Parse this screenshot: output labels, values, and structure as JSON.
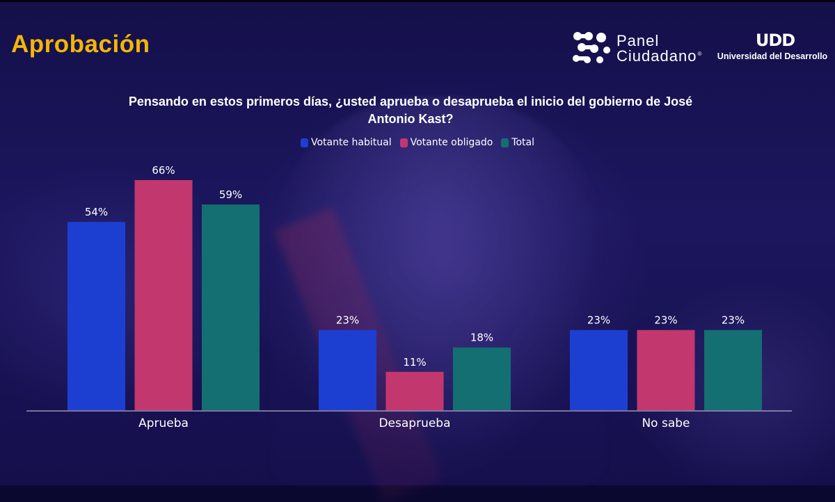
{
  "header": {
    "title": "Aprobación",
    "logo_panel_line1": "Panel",
    "logo_panel_line2": "Ciudadano",
    "logo_panel_reg": "®",
    "logo_udd_mark": "UDD",
    "logo_udd_text": "Universidad del Desarrollo"
  },
  "chart_data": {
    "type": "bar",
    "title": "Pensando en estos primeros días, ¿usted aprueba o desaprueba el inicio del gobierno de José Antonio Kast?",
    "categories": [
      "Aprueba",
      "Desaprueba",
      "No sabe"
    ],
    "series": [
      {
        "name": "Votante habitual",
        "color": "#1d3fd1",
        "values": [
          54,
          23,
          23
        ],
        "labels": [
          "54%",
          "23%",
          "23%"
        ]
      },
      {
        "name": "Votante obligado",
        "color": "#c3376f",
        "values": [
          66,
          11,
          23
        ],
        "labels": [
          "66%",
          "11%",
          "23%"
        ]
      },
      {
        "name": "Total",
        "color": "#136f72",
        "values": [
          59,
          18,
          23
        ],
        "labels": [
          "59%",
          "18%",
          "23%"
        ]
      }
    ],
    "xlabel": "",
    "ylabel": "",
    "ylim": [
      0,
      66
    ],
    "grid": false,
    "legend": "top-center"
  }
}
